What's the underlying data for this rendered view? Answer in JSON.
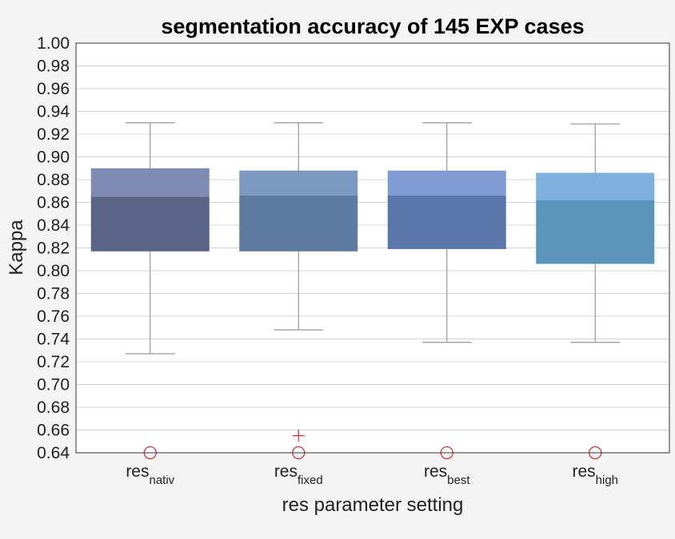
{
  "chart_data": {
    "type": "box",
    "title": "segmentation accuracy of 145 EXP cases",
    "xlabel": "res parameter setting",
    "ylabel": "Kappa",
    "ylim": [
      0.64,
      1.0
    ],
    "ytick_step": 0.02,
    "grid": "horizontal",
    "categories": [
      {
        "main": "res",
        "sub": "nativ"
      },
      {
        "main": "res",
        "sub": "fixed"
      },
      {
        "main": "res",
        "sub": "best"
      },
      {
        "main": "res",
        "sub": "high"
      }
    ],
    "boxes": [
      {
        "whisker_low": 0.727,
        "q1": 0.817,
        "median": 0.865,
        "q3": 0.89,
        "whisker_high": 0.93,
        "color_upper": "#7f8bb3",
        "color_lower": "#5a6487"
      },
      {
        "whisker_low": 0.748,
        "q1": 0.817,
        "median": 0.866,
        "q3": 0.888,
        "whisker_high": 0.93,
        "color_upper": "#7c99c2",
        "color_lower": "#5d7aa0"
      },
      {
        "whisker_low": 0.737,
        "q1": 0.819,
        "median": 0.866,
        "q3": 0.888,
        "whisker_high": 0.93,
        "color_upper": "#7f9bd2",
        "color_lower": "#5b76ab"
      },
      {
        "whisker_low": 0.737,
        "q1": 0.806,
        "median": 0.862,
        "q3": 0.886,
        "whisker_high": 0.929,
        "color_upper": "#7db0dc",
        "color_lower": "#5a94bc"
      }
    ],
    "outliers_cross": [
      {
        "category": 1,
        "value": 0.655
      }
    ],
    "outliers_circle": [
      {
        "category": 0,
        "value": 0.64
      },
      {
        "category": 1,
        "value": 0.64
      },
      {
        "category": 2,
        "value": 0.64
      },
      {
        "category": 3,
        "value": 0.64
      }
    ],
    "colors": {
      "whisker": "#999999",
      "outlier": "#e3262a",
      "grid": "#d4d4d4",
      "plot_bg": "#ffffff",
      "page_bg": "#f4f4f4"
    }
  }
}
